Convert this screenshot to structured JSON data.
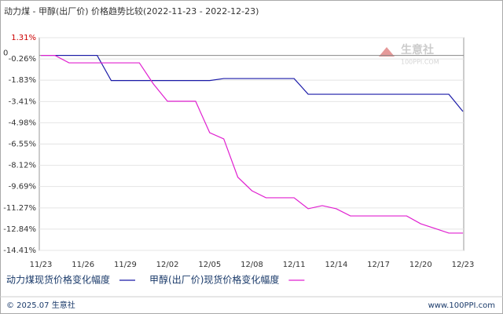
{
  "chart_data": {
    "type": "line",
    "title": "动力煤 - 甲醇(出厂价) 价格趋势比较(2022-11-23 - 2022-12-23)",
    "categories": [
      "11/23",
      null,
      null,
      "11/26",
      null,
      null,
      "11/29",
      null,
      null,
      "12/02",
      null,
      null,
      "12/05",
      null,
      null,
      "12/08",
      null,
      null,
      "12/11",
      null,
      null,
      "12/14",
      null,
      null,
      "12/17",
      null,
      null,
      "12/20",
      null,
      null,
      "12/23"
    ],
    "series": [
      {
        "name": "动力煤现货价格变化幅度",
        "color": "#1a1aa8",
        "values": [
          0,
          0,
          0,
          0,
          0,
          -1.86,
          -1.86,
          -1.86,
          -1.86,
          -1.86,
          -1.86,
          -1.86,
          -1.86,
          -1.71,
          -1.71,
          -1.71,
          -1.71,
          -1.71,
          -1.71,
          -2.87,
          -2.87,
          -2.87,
          -2.87,
          -2.87,
          -2.87,
          -2.87,
          -2.87,
          -2.87,
          -2.87,
          -2.87,
          -4.14
        ]
      },
      {
        "name": "甲醇(出厂价)现货价格变化幅度",
        "color": "#e020d0",
        "values": [
          0,
          0,
          -0.55,
          -0.55,
          -0.55,
          -0.55,
          -0.55,
          -0.55,
          -2.11,
          -3.39,
          -3.39,
          -3.39,
          -5.71,
          -6.17,
          -9.0,
          -10.0,
          -10.52,
          -10.52,
          -10.52,
          -11.33,
          -11.1,
          -11.33,
          -11.86,
          -11.86,
          -11.86,
          -11.86,
          -11.86,
          -12.44,
          -12.78,
          -13.13,
          -13.13
        ]
      }
    ],
    "ylim": [
      -14.41,
      1.31
    ],
    "yticks": [
      {
        "value": 1.31,
        "label": "1.31%"
      },
      0,
      {
        "value": -0.26,
        "label": "-0.26%"
      },
      {
        "value": -1.83,
        "label": "-1.83%"
      },
      {
        "value": -3.41,
        "label": "-3.41%"
      },
      {
        "value": -4.98,
        "label": "-4.98%"
      },
      {
        "value": -6.55,
        "label": "-6.55%"
      },
      {
        "value": -8.12,
        "label": "-8.12%"
      },
      {
        "value": -9.69,
        "label": "-9.69%"
      },
      {
        "value": -11.27,
        "label": "-11.27%"
      },
      {
        "value": -12.84,
        "label": "-12.84%"
      },
      {
        "value": -14.41,
        "label": "-14.41%"
      }
    ],
    "grid": true,
    "watermark": {
      "name": "生意社",
      "site": "100PPI.COM"
    },
    "footer": {
      "left": "© 2025.07 生意社",
      "right": "www.100PPI.com"
    }
  }
}
